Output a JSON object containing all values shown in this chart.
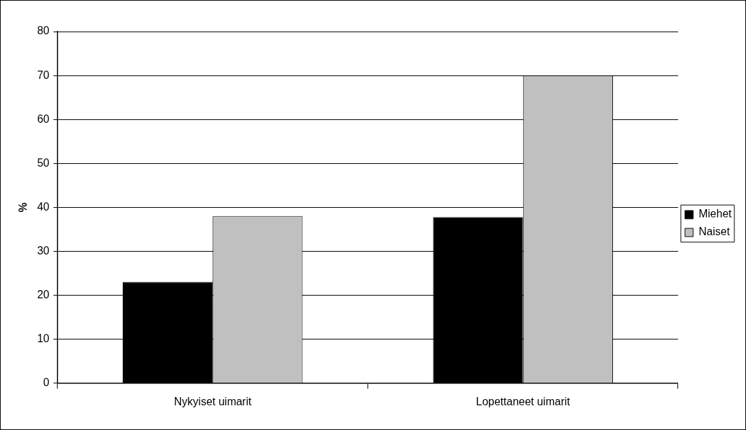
{
  "chart_data": {
    "type": "bar",
    "ylabel": "%",
    "categories": [
      "Nykyiset uimarit",
      "Lopettaneet uimarit"
    ],
    "series": [
      {
        "name": "Miehet",
        "color": "#000000",
        "values": [
          23,
          37.8
        ]
      },
      {
        "name": "Naiset",
        "color": "#c0c0c0",
        "values": [
          38,
          70
        ]
      }
    ],
    "ylim": [
      0,
      80
    ],
    "yticks": [
      0,
      10,
      20,
      30,
      40,
      50,
      60,
      70,
      80
    ],
    "grid": "y",
    "legend": "right"
  }
}
